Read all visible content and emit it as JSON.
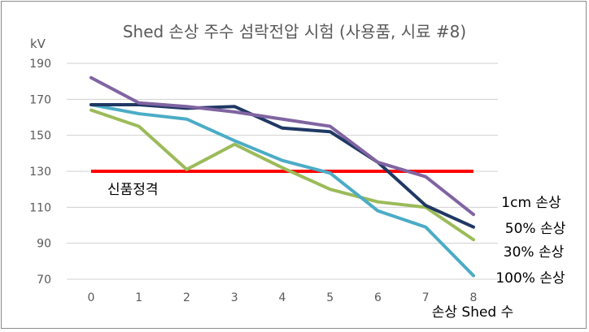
{
  "chart_data": {
    "type": "line",
    "title": "Shed 손상 주수 섬락전압 시험 (사용품, 시료 #8)",
    "ylabel": "kV",
    "xlabel": "손상 Shed 수",
    "x": [
      "0",
      "1",
      "2",
      "3",
      "4",
      "5",
      "6",
      "7",
      "8"
    ],
    "ylim": [
      70,
      190
    ],
    "yticks": [
      "190",
      "170",
      "150",
      "130",
      "110",
      "90",
      "70"
    ],
    "grid": true,
    "series": [
      {
        "name": "1cm 손상",
        "color": "#8064a2",
        "values": [
          182,
          168,
          166,
          163,
          159,
          155,
          135,
          127,
          106
        ]
      },
      {
        "name": "50% 손상",
        "color": "#1f3864",
        "values": [
          167,
          167,
          165,
          166,
          154,
          152,
          135,
          111,
          99
        ]
      },
      {
        "name": "30% 손상",
        "color": "#9bbb59",
        "values": [
          164,
          155,
          131,
          145,
          132,
          120,
          113,
          110,
          92
        ]
      },
      {
        "name": "100% 손상",
        "color": "#4bacc6",
        "values": [
          167,
          162,
          159,
          147,
          136,
          129,
          108,
          99,
          72
        ]
      }
    ],
    "reference": {
      "label": "신품정격",
      "value": 130,
      "color": "#ff0000"
    }
  }
}
